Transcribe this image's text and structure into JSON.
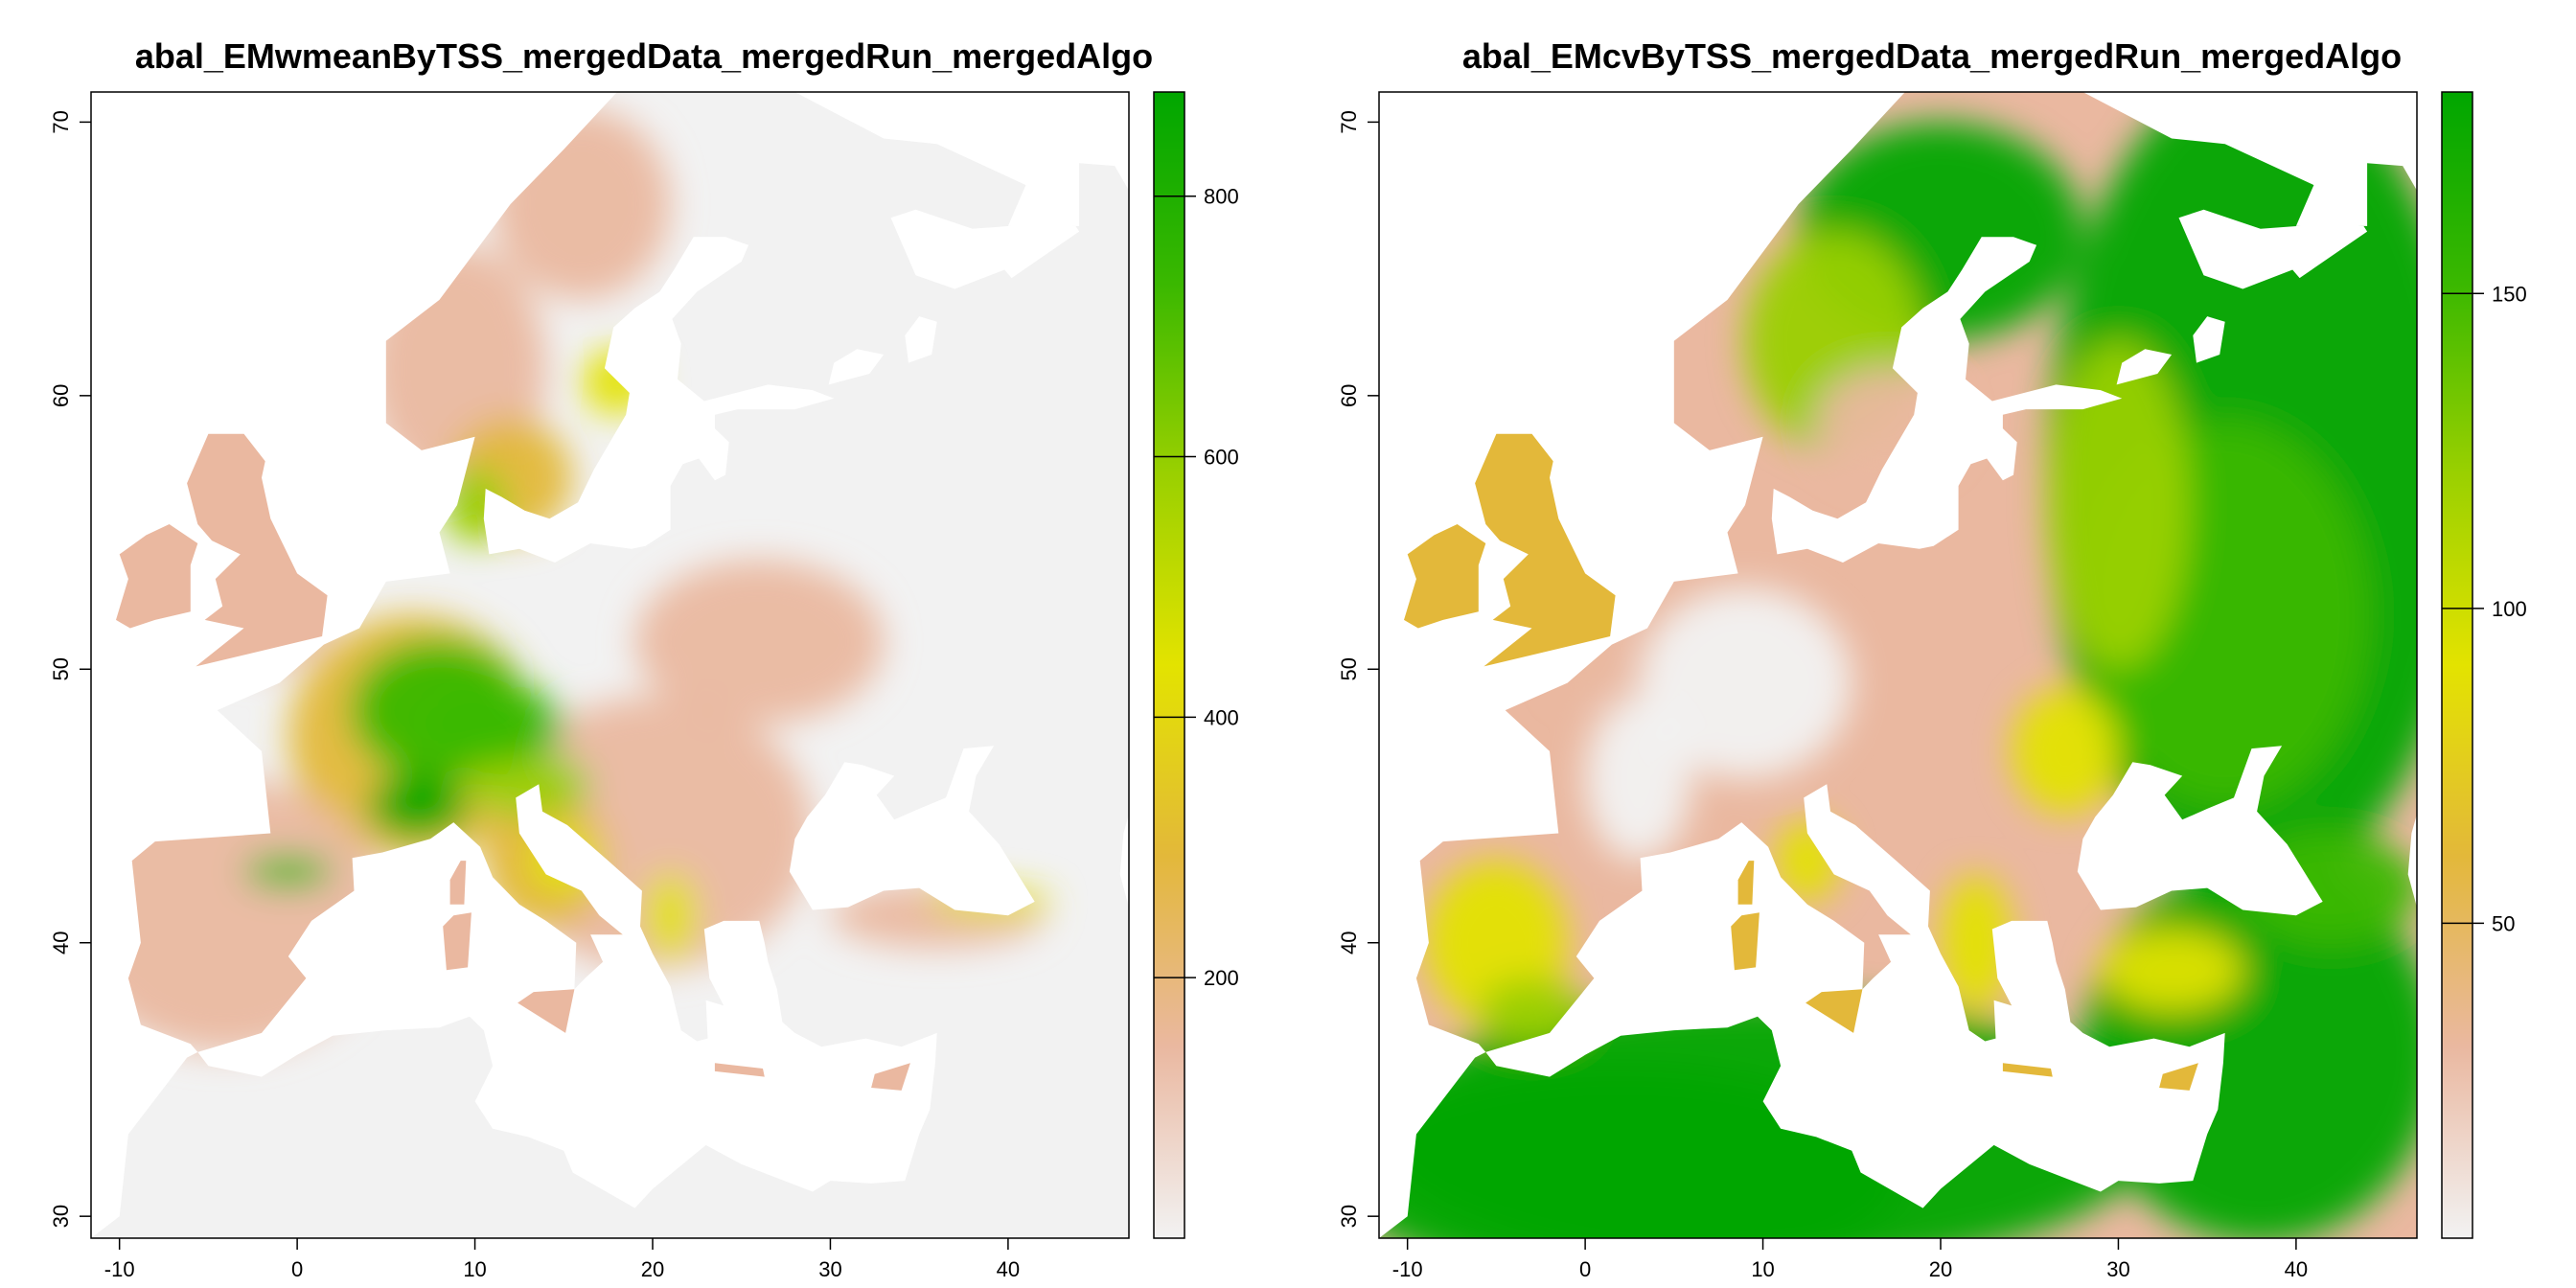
{
  "maps": [
    {
      "id": "wmean",
      "title": "abal_EMwmeanByTSS_mergedData_mergedRun_mergedAlgo",
      "colorbar": {
        "min": 0,
        "max": 880,
        "ticks": [
          "200",
          "400",
          "600",
          "800"
        ],
        "tick_values": [
          200,
          400,
          600,
          800
        ]
      },
      "palette": [
        "#f2f2f2",
        "#eab8a0",
        "#e3b83a",
        "#e3e300",
        "#9ad000",
        "#3ab800",
        "#00a600"
      ]
    },
    {
      "id": "cv",
      "title": "abal_EMcvByTSS_mergedData_mergedRun_mergedAlgo",
      "colorbar": {
        "min": 0,
        "max": 182,
        "ticks": [
          "50",
          "100",
          "150"
        ],
        "tick_values": [
          50,
          100,
          150
        ]
      },
      "palette": [
        "#f2f2f2",
        "#eab8a0",
        "#e3b83a",
        "#e3e300",
        "#9ad000",
        "#3ab800",
        "#00a600"
      ]
    }
  ],
  "axes": {
    "x_ticks": [
      "-10",
      "0",
      "10",
      "20",
      "30",
      "40"
    ],
    "x_values": [
      -10,
      0,
      10,
      20,
      30,
      40
    ],
    "y_ticks": [
      "30",
      "40",
      "50",
      "60",
      "70"
    ],
    "y_values": [
      30,
      40,
      50,
      60,
      70
    ],
    "xlim": [
      -11.6,
      46.8
    ],
    "ylim": [
      29.2,
      71.1
    ]
  },
  "colors": {
    "background": "#f2f2f2",
    "water": "#ffffff"
  }
}
